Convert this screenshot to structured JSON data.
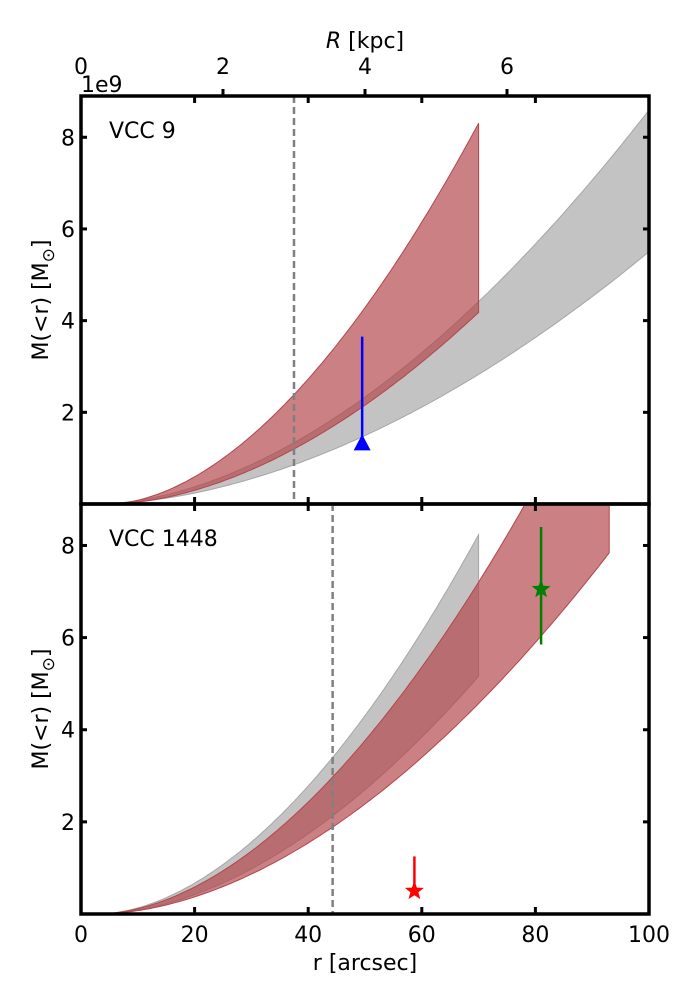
{
  "colors": {
    "model_red": "#b3454a",
    "model_gray": "#a6a6a6",
    "blue_point": "#0000ff",
    "red_point": "#ff0000",
    "green_point": "#008000",
    "guide_line": "#808080"
  },
  "chart_data": [
    {
      "type": "area",
      "panel_label": "VCC 9",
      "top_axis": {
        "label_italic": "R",
        "label_rest": " [kpc]",
        "ticks": [
          "0",
          "2",
          "4",
          "6"
        ],
        "tick_values": [
          0,
          2,
          4,
          6
        ],
        "xlim": [
          0,
          8.0
        ]
      },
      "y_offset_text": "1e9",
      "ylabel_main": "M(<r) [M",
      "ylabel_sub": "⊙",
      "ylabel_end": "]",
      "xlim": [
        0,
        100
      ],
      "ylim": [
        0,
        8.9
      ],
      "yticks": [
        "2",
        "4",
        "6",
        "8"
      ],
      "ytick_values": [
        2,
        4,
        6,
        8
      ],
      "xtick_values": [
        20,
        40,
        60,
        80
      ],
      "vline_x": 37.5,
      "bands": [
        {
          "name": "gray model",
          "color_key": "model_gray",
          "x0": 3,
          "x1": 100,
          "upper": {
            "a": 0.00228,
            "p": 1.8
          },
          "lower": {
            "a": 0.00146,
            "p": 1.8
          }
        },
        {
          "name": "red model",
          "color_key": "model_red",
          "x0": 5,
          "x1": 70,
          "upper": {
            "a": 0.00453,
            "p": 1.8
          },
          "lower": {
            "a": 0.00228,
            "p": 1.8
          }
        }
      ],
      "points": [
        {
          "name": "blue lower limit",
          "marker": "triangle",
          "color_key": "blue_point",
          "x": 49.5,
          "y": 1.3,
          "yerr_low": 1.3,
          "yerr_high": 3.65
        }
      ]
    },
    {
      "type": "area",
      "panel_label": "VCC 1448",
      "xlabel": "r [arcsec]",
      "ylabel_main": "M(<r) [M",
      "ylabel_sub": "⊙",
      "ylabel_end": "]",
      "xlim": [
        0,
        100
      ],
      "ylim": [
        0,
        8.9
      ],
      "xticks": [
        "0",
        "20",
        "40",
        "60",
        "80",
        "100"
      ],
      "xtick_values": [
        0,
        20,
        40,
        60,
        80,
        100
      ],
      "yticks": [
        "2",
        "4",
        "6",
        "8"
      ],
      "ytick_values": [
        2,
        4,
        6,
        8
      ],
      "vline_x": 44.3,
      "bands": [
        {
          "name": "gray model",
          "color_key": "model_gray",
          "x0": 3,
          "x1": 70,
          "upper": {
            "a": 0.00375,
            "p": 1.83
          },
          "lower": {
            "a": 0.00235,
            "p": 1.83
          }
        },
        {
          "name": "red model",
          "color_key": "model_red",
          "x0": 3,
          "x1": 93,
          "upper": {
            "a": 0.00328,
            "p": 1.83
          },
          "lower": {
            "a": 0.00208,
            "p": 1.83
          }
        }
      ],
      "points": [
        {
          "name": "red star",
          "marker": "star",
          "color_key": "red_point",
          "x": 58.7,
          "y": 0.5,
          "yerr_low": 0.5,
          "yerr_high": 1.25
        },
        {
          "name": "green star",
          "marker": "star",
          "color_key": "green_point",
          "x": 81.0,
          "y": 7.05,
          "yerr_low": 5.85,
          "yerr_high": 8.4
        }
      ]
    }
  ]
}
